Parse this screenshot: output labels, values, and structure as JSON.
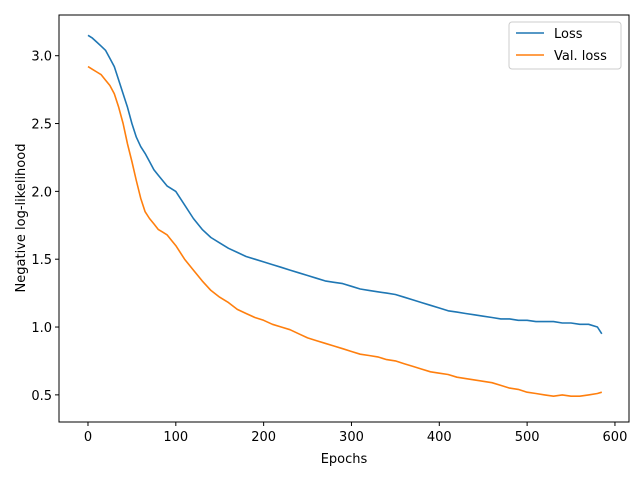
{
  "chart_data": {
    "type": "line",
    "xlabel": "Epochs",
    "ylabel": "Negative log-likelihood",
    "xlim": [
      -33,
      616
    ],
    "ylim": [
      0.3,
      3.3
    ],
    "xticks": [
      0,
      100,
      200,
      300,
      400,
      500,
      600
    ],
    "yticks": [
      0.5,
      1.0,
      1.5,
      2.0,
      2.5,
      3.0
    ],
    "xtick_labels": [
      "0",
      "100",
      "200",
      "300",
      "400",
      "500",
      "600"
    ],
    "ytick_labels": [
      "0.5",
      "1.0",
      "1.5",
      "2.0",
      "2.5",
      "3.0"
    ],
    "grid": false,
    "legend_placement": "top-right",
    "series": [
      {
        "name": "Loss",
        "color": "#1f77b4",
        "x": [
          0,
          5,
          10,
          15,
          20,
          25,
          30,
          35,
          40,
          45,
          50,
          55,
          60,
          65,
          70,
          75,
          80,
          85,
          90,
          95,
          100,
          110,
          120,
          130,
          140,
          150,
          160,
          170,
          180,
          190,
          200,
          210,
          220,
          230,
          240,
          250,
          260,
          270,
          280,
          290,
          300,
          310,
          320,
          330,
          340,
          350,
          360,
          370,
          380,
          390,
          400,
          410,
          420,
          430,
          440,
          450,
          460,
          470,
          480,
          490,
          500,
          510,
          520,
          530,
          540,
          550,
          560,
          570,
          580,
          585
        ],
        "values": [
          3.15,
          3.13,
          3.1,
          3.07,
          3.04,
          2.98,
          2.92,
          2.82,
          2.72,
          2.62,
          2.5,
          2.4,
          2.33,
          2.28,
          2.22,
          2.16,
          2.12,
          2.08,
          2.04,
          2.02,
          2.0,
          1.9,
          1.8,
          1.72,
          1.66,
          1.62,
          1.58,
          1.55,
          1.52,
          1.5,
          1.48,
          1.46,
          1.44,
          1.42,
          1.4,
          1.38,
          1.36,
          1.34,
          1.33,
          1.32,
          1.3,
          1.28,
          1.27,
          1.26,
          1.25,
          1.24,
          1.22,
          1.2,
          1.18,
          1.16,
          1.14,
          1.12,
          1.11,
          1.1,
          1.09,
          1.08,
          1.07,
          1.06,
          1.06,
          1.05,
          1.05,
          1.04,
          1.04,
          1.04,
          1.03,
          1.03,
          1.02,
          1.02,
          1.0,
          0.95
        ]
      },
      {
        "name": "Val. loss",
        "color": "#ff7f0e",
        "x": [
          0,
          5,
          10,
          15,
          20,
          25,
          30,
          35,
          40,
          45,
          50,
          55,
          60,
          65,
          70,
          75,
          80,
          85,
          90,
          95,
          100,
          110,
          120,
          130,
          140,
          150,
          160,
          170,
          180,
          190,
          200,
          210,
          220,
          230,
          240,
          250,
          260,
          270,
          280,
          290,
          300,
          310,
          320,
          330,
          340,
          350,
          360,
          370,
          380,
          390,
          400,
          410,
          420,
          430,
          440,
          450,
          460,
          470,
          480,
          490,
          500,
          510,
          520,
          530,
          540,
          550,
          560,
          570,
          580,
          585
        ],
        "values": [
          2.92,
          2.9,
          2.88,
          2.86,
          2.82,
          2.78,
          2.72,
          2.62,
          2.5,
          2.35,
          2.22,
          2.08,
          1.95,
          1.85,
          1.8,
          1.76,
          1.72,
          1.7,
          1.68,
          1.64,
          1.6,
          1.5,
          1.42,
          1.34,
          1.27,
          1.22,
          1.18,
          1.13,
          1.1,
          1.07,
          1.05,
          1.02,
          1.0,
          0.98,
          0.95,
          0.92,
          0.9,
          0.88,
          0.86,
          0.84,
          0.82,
          0.8,
          0.79,
          0.78,
          0.76,
          0.75,
          0.73,
          0.71,
          0.69,
          0.67,
          0.66,
          0.65,
          0.63,
          0.62,
          0.61,
          0.6,
          0.59,
          0.57,
          0.55,
          0.54,
          0.52,
          0.51,
          0.5,
          0.49,
          0.5,
          0.49,
          0.49,
          0.5,
          0.51,
          0.52
        ]
      }
    ]
  }
}
